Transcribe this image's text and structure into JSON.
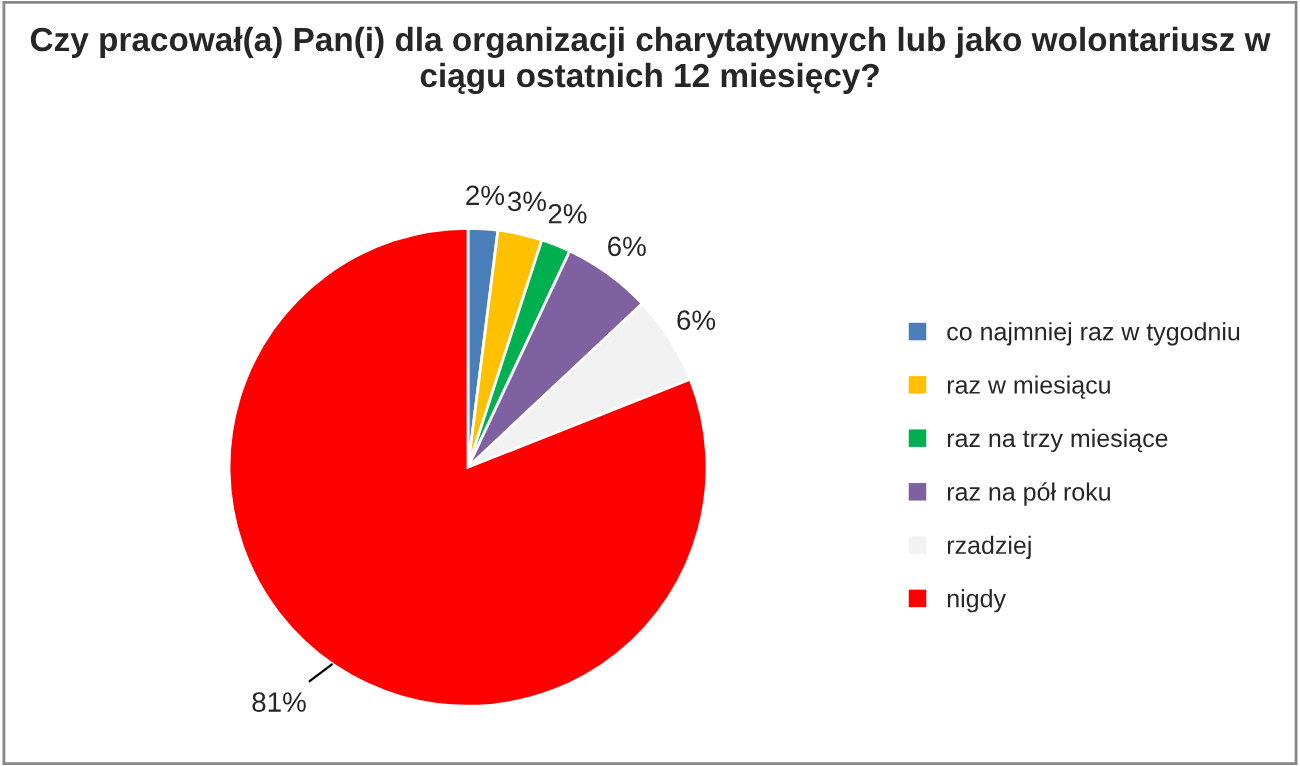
{
  "chart_data": {
    "type": "pie",
    "title": "Czy pracował(a) Pan(i) dla organizacji charytatywnych lub jako wolontariusz w ciągu ostatnich 12 miesięcy?",
    "categories": [
      "co najmniej raz w tygodniu",
      "raz w miesiącu",
      "raz na trzy miesiące",
      "raz na pół roku",
      "rzadziej",
      "nigdy"
    ],
    "values": [
      2,
      3,
      2,
      6,
      6,
      81
    ],
    "colors": [
      "#4a7ebb",
      "#ffc000",
      "#00b050",
      "#7f60a0",
      "#f2f2f2",
      "#ff0000"
    ],
    "value_labels": [
      "2%",
      "3%",
      "2%",
      "6%",
      "6%",
      "81%"
    ],
    "legend": "right"
  }
}
